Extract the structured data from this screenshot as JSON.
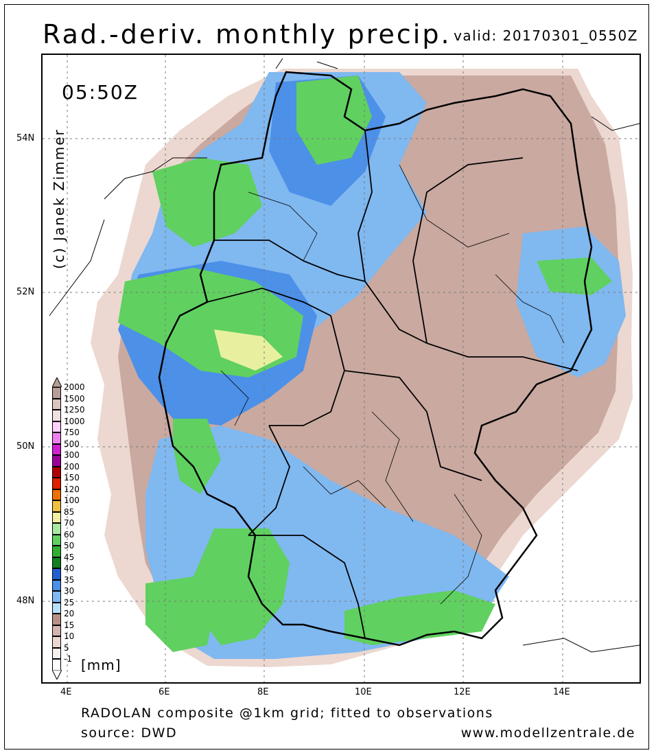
{
  "header": {
    "title": "Rad.-deriv. monthly precip.",
    "valid": "valid: 20170301_0550Z"
  },
  "map": {
    "time_label": "05:50Z",
    "copyright": "(c) Janek Zimmer",
    "lat_ticks": [
      "54N",
      "52N",
      "50N",
      "48N"
    ],
    "lon_ticks": [
      "4E",
      "6E",
      "8E",
      "10E",
      "12E",
      "14E"
    ],
    "colors": {
      "land_dry": "#c9a9a0",
      "light_blue": "#a8d4f0",
      "mid_blue": "#6aaee8",
      "deep_blue": "#3a82d8",
      "light_green": "#7cd67a",
      "green": "#3cb84a",
      "yellow": "#e8f0a0"
    }
  },
  "legend": {
    "unit": "[mm]",
    "items": [
      {
        "label": "2000",
        "color": "#b89c98"
      },
      {
        "label": "1500",
        "color": "#dcc4c0"
      },
      {
        "label": "1250",
        "color": "#f0e0e0"
      },
      {
        "label": "1000",
        "color": "#ffd0ff"
      },
      {
        "label": "750",
        "color": "#f080f0"
      },
      {
        "label": "500",
        "color": "#d020d0"
      },
      {
        "label": "300",
        "color": "#9a009a"
      },
      {
        "label": "200",
        "color": "#b00000"
      },
      {
        "label": "150",
        "color": "#e02000"
      },
      {
        "label": "120",
        "color": "#f07000"
      },
      {
        "label": "100",
        "color": "#f0c040"
      },
      {
        "label": "85",
        "color": "#f0f0a0"
      },
      {
        "label": "70",
        "color": "#a8e8a0"
      },
      {
        "label": "60",
        "color": "#60d060"
      },
      {
        "label": "50",
        "color": "#30b030"
      },
      {
        "label": "45",
        "color": "#108020"
      },
      {
        "label": "40",
        "color": "#2060d0"
      },
      {
        "label": "35",
        "color": "#4c90e8"
      },
      {
        "label": "30",
        "color": "#80b8f0"
      },
      {
        "label": "25",
        "color": "#b8e0f8"
      },
      {
        "label": "20",
        "color": "#b89088"
      },
      {
        "label": "15",
        "color": "#d4b4ac"
      },
      {
        "label": "10",
        "color": "#ecd8d0"
      },
      {
        "label": "5",
        "color": "#f8f0ec"
      },
      {
        "label": "-1",
        "color": "#ffffff"
      }
    ]
  },
  "footer": {
    "line1": "RADOLAN composite @1km grid; fitted to observations",
    "line2": "source: DWD",
    "website": "www.modellzentrale.de"
  }
}
